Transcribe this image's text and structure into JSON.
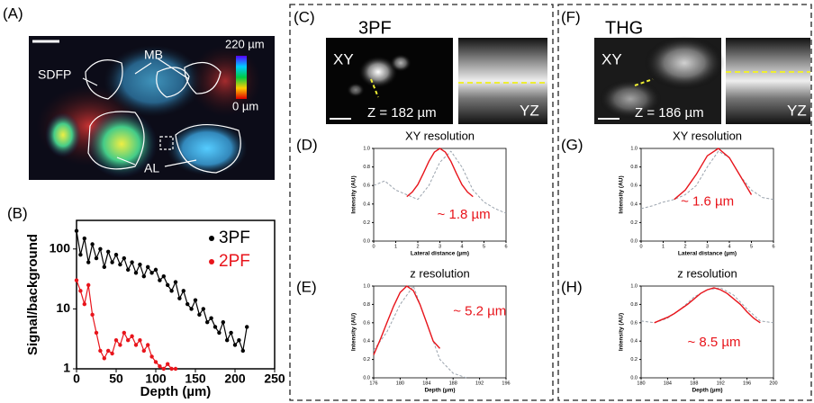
{
  "panel_a": {
    "label": "(A)",
    "colorbar_max": "220 µm",
    "colorbar_min": "0 µm",
    "annotations": [
      "SDFP",
      "MB",
      "AL"
    ]
  },
  "panel_c": {
    "label": "(C)",
    "title": "3PF",
    "xy": "XY",
    "depth": "Z = 182 µm",
    "yz": "YZ"
  },
  "panel_f": {
    "label": "(F)",
    "title": "THG",
    "xy": "XY",
    "depth": "Z = 186 µm",
    "yz": "YZ"
  },
  "chart_data": [
    {
      "type": "line",
      "panel_label": "(B)",
      "xlabel": "Depth (µm)",
      "ylabel": "Signal/background",
      "xlim": [
        0,
        250
      ],
      "xticks": [
        0,
        50,
        100,
        150,
        200,
        250
      ],
      "ylim": [
        1,
        300
      ],
      "yticks": [
        1,
        10,
        100
      ],
      "log_y": true,
      "legend": "upper right",
      "series": [
        {
          "name": "3PF",
          "color": "#000000",
          "markers": true,
          "x": [
            0,
            5,
            10,
            15,
            20,
            25,
            30,
            35,
            40,
            45,
            50,
            55,
            60,
            65,
            70,
            75,
            80,
            85,
            90,
            95,
            100,
            105,
            110,
            115,
            120,
            125,
            130,
            135,
            140,
            145,
            150,
            155,
            160,
            165,
            170,
            175,
            180,
            185,
            190,
            195,
            200,
            205,
            210,
            215
          ],
          "values": [
            200,
            80,
            150,
            60,
            120,
            70,
            100,
            50,
            90,
            60,
            80,
            55,
            70,
            45,
            60,
            40,
            55,
            35,
            50,
            40,
            45,
            30,
            35,
            25,
            20,
            28,
            15,
            20,
            12,
            10,
            14,
            8,
            10,
            6,
            7,
            5,
            4,
            6,
            3,
            4,
            2.5,
            3,
            2,
            5
          ]
        },
        {
          "name": "2PF",
          "color": "#e8141b",
          "markers": true,
          "x": [
            0,
            5,
            10,
            15,
            20,
            25,
            30,
            35,
            40,
            45,
            50,
            55,
            60,
            65,
            70,
            75,
            80,
            85,
            90,
            95,
            100,
            105,
            110,
            115,
            120,
            125
          ],
          "values": [
            30,
            20,
            12,
            25,
            8,
            4,
            2,
            1.5,
            2,
            1.8,
            3,
            2.5,
            4,
            3,
            3.5,
            2.5,
            3,
            2,
            2.5,
            1.6,
            1.3,
            1.1,
            1,
            1.2,
            1,
            1
          ]
        }
      ]
    },
    {
      "type": "line",
      "panel_label": "(D)",
      "title": "XY resolution",
      "xlabel": "Lateral distance (µm)",
      "ylabel": "Intensity (AU)",
      "annotation": "~ 1.8 µm",
      "xlim": [
        0,
        6
      ],
      "xticks": [
        0,
        1,
        2,
        3,
        4,
        5,
        6
      ],
      "ylim": [
        0,
        1.0
      ],
      "yticks": [
        {
          "value": 0,
          "label": "0.0"
        },
        0.2,
        0.4,
        0.6,
        0.8,
        {
          "value": 1,
          "label": "1.0"
        }
      ],
      "series": [
        {
          "color": "#9aa3ad",
          "dashed": true,
          "x": [
            0,
            0.5,
            1,
            1.5,
            2,
            2.5,
            3,
            3.5,
            4,
            4.5,
            5,
            5.5,
            6
          ],
          "values": [
            0.6,
            0.65,
            0.55,
            0.5,
            0.45,
            0.6,
            0.85,
            0.97,
            0.8,
            0.55,
            0.42,
            0.35,
            0.3
          ]
        },
        {
          "color": "#e8141b",
          "x": [
            1.5,
            1.75,
            2,
            2.25,
            2.5,
            2.75,
            3,
            3.25,
            3.5,
            3.75,
            4,
            4.25,
            4.5
          ],
          "values": [
            0.48,
            0.53,
            0.61,
            0.73,
            0.86,
            0.96,
            1.0,
            0.96,
            0.86,
            0.73,
            0.61,
            0.53,
            0.48
          ]
        }
      ]
    },
    {
      "type": "line",
      "panel_label": "(E)",
      "title": "z resolution",
      "xlabel": "Depth (µm)",
      "ylabel": "Intensity (AU)",
      "annotation": "~ 5.2 µm",
      "xlim": [
        176,
        196
      ],
      "xticks": [
        176,
        180,
        184,
        188,
        192,
        196
      ],
      "ylim": [
        0,
        1.0
      ],
      "yticks": [
        {
          "value": 0,
          "label": "0.0"
        },
        0.2,
        0.4,
        0.6,
        0.8,
        {
          "value": 1,
          "label": "1.0"
        }
      ],
      "series": [
        {
          "color": "#9aa3ad",
          "dashed": true,
          "x": [
            176,
            178,
            180,
            182,
            184,
            186,
            188,
            190
          ],
          "values": [
            0.3,
            0.5,
            0.8,
            1.0,
            0.6,
            0.2,
            0.05,
            0.0
          ]
        },
        {
          "color": "#e8141b",
          "x": [
            176,
            177,
            178,
            179,
            180,
            181,
            182,
            183,
            184,
            185,
            186
          ],
          "values": [
            0.25,
            0.42,
            0.6,
            0.78,
            0.93,
            1.0,
            0.95,
            0.8,
            0.6,
            0.4,
            0.32
          ]
        }
      ]
    },
    {
      "type": "line",
      "panel_label": "(G)",
      "title": "XY resolution",
      "xlabel": "Lateral distance (µm)",
      "ylabel": "Intensity (AU)",
      "annotation": "~ 1.6 µm",
      "xlim": [
        0,
        6
      ],
      "xticks": [
        0,
        1,
        2,
        3,
        4,
        5,
        6
      ],
      "ylim": [
        0,
        1.0
      ],
      "yticks": [
        {
          "value": 0,
          "label": "0.0"
        },
        0.2,
        0.4,
        0.6,
        0.8,
        {
          "value": 1,
          "label": "1.0"
        }
      ],
      "series": [
        {
          "color": "#9aa3ad",
          "dashed": true,
          "x": [
            0,
            0.5,
            1,
            1.5,
            2,
            2.5,
            3,
            3.5,
            4,
            4.5,
            5,
            5.5,
            6
          ],
          "values": [
            0.35,
            0.38,
            0.42,
            0.45,
            0.5,
            0.6,
            0.8,
            0.97,
            0.9,
            0.7,
            0.55,
            0.47,
            0.45
          ]
        },
        {
          "color": "#e8141b",
          "x": [
            1.5,
            2,
            2.5,
            3,
            3.5,
            4,
            4.5,
            5
          ],
          "values": [
            0.45,
            0.55,
            0.72,
            0.92,
            1.0,
            0.9,
            0.7,
            0.5
          ]
        }
      ]
    },
    {
      "type": "line",
      "panel_label": "(H)",
      "title": "z resolution",
      "xlabel": "Depth (µm)",
      "ylabel": "Intensity (AU)",
      "annotation": "~ 8.5 µm",
      "xlim": [
        180,
        200
      ],
      "xticks": [
        180,
        184,
        188,
        192,
        196,
        200
      ],
      "ylim": [
        0,
        1.0
      ],
      "yticks": [
        {
          "value": 0,
          "label": "0.0"
        },
        0.2,
        0.4,
        0.6,
        0.8,
        {
          "value": 1,
          "label": "1.0"
        }
      ],
      "series": [
        {
          "color": "#9aa3ad",
          "dashed": true,
          "x": [
            180,
            182,
            184,
            186,
            188,
            190,
            192,
            194,
            196,
            198,
            200
          ],
          "values": [
            0.62,
            0.6,
            0.65,
            0.75,
            0.88,
            0.96,
            0.98,
            0.9,
            0.75,
            0.62,
            0.6
          ]
        },
        {
          "color": "#e8141b",
          "x": [
            182,
            183,
            184,
            185,
            186,
            187,
            188,
            189,
            190,
            191,
            192,
            193,
            194,
            195,
            196,
            197,
            198
          ],
          "values": [
            0.6,
            0.63,
            0.66,
            0.7,
            0.75,
            0.8,
            0.86,
            0.92,
            0.96,
            0.98,
            0.96,
            0.92,
            0.86,
            0.8,
            0.72,
            0.65,
            0.6
          ]
        }
      ]
    }
  ]
}
